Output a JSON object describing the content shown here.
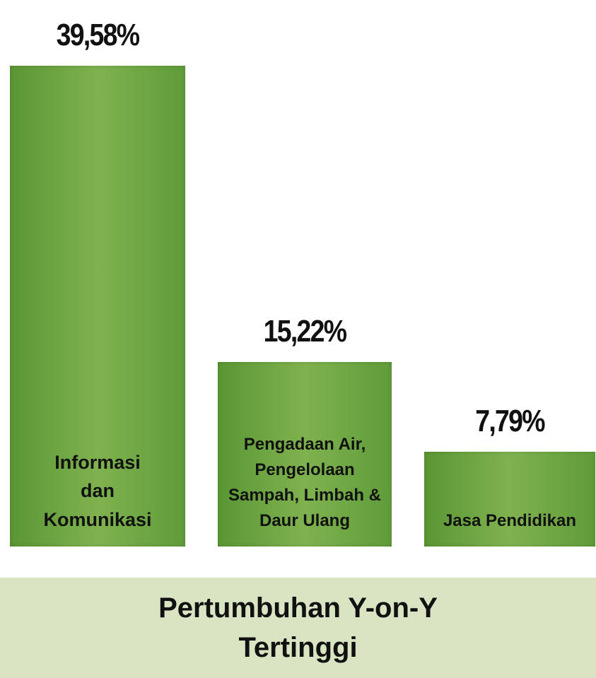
{
  "chart_data": {
    "type": "bar",
    "title": "Pertumbuhan Y-on-Y Tertinggi",
    "categories": [
      "Informasi dan Komunikasi",
      "Pengadaan Air, Pengelolaan Sampah, Limbah & Daur Ulang",
      "Jasa Pendidikan"
    ],
    "values": [
      39.58,
      15.22,
      7.79
    ],
    "value_labels": [
      "39,58%",
      "15,22%",
      "7,79%"
    ],
    "color": "#5f9c3a"
  }
}
